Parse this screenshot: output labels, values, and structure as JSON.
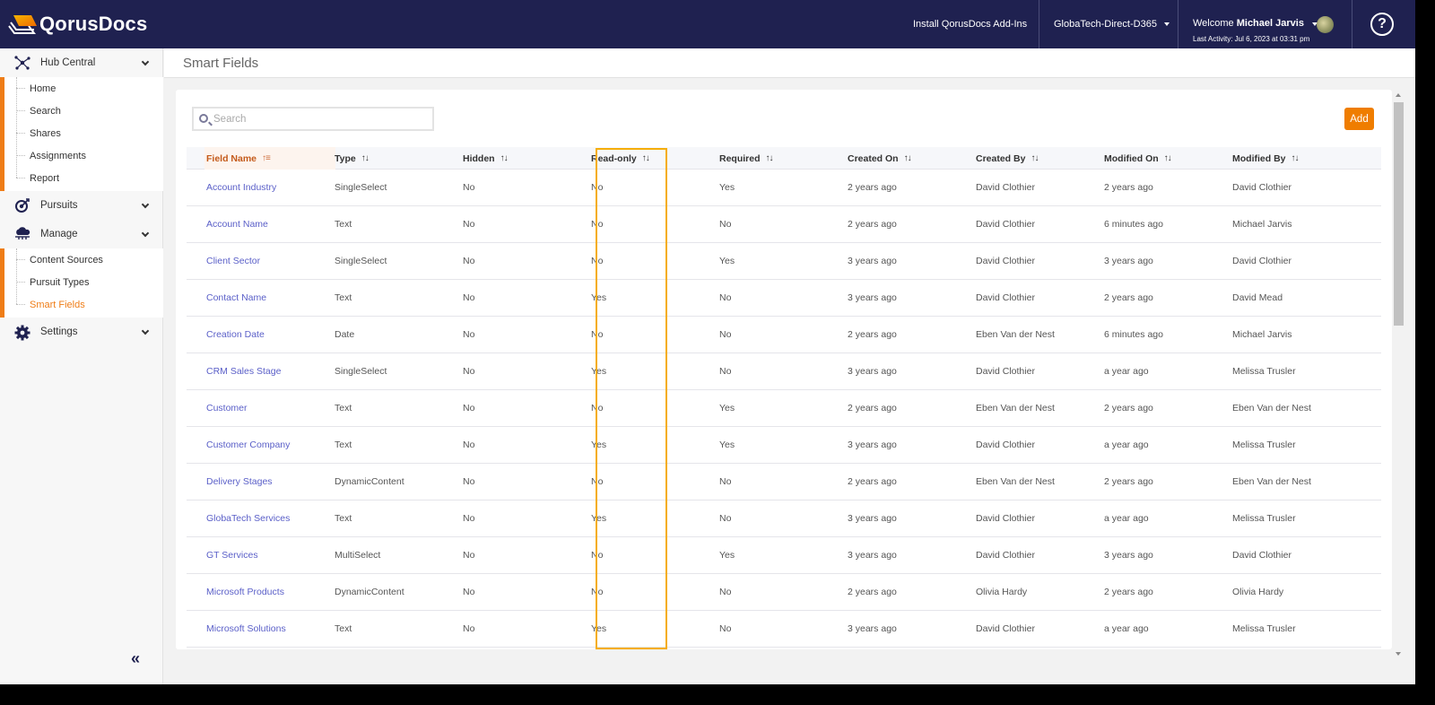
{
  "app": {
    "brand": "QorusDocs",
    "colors": {
      "navy": "#1f2150",
      "accent": "#ef7d00",
      "link": "#5a5fc8",
      "highlight": "#f5ad0a"
    }
  },
  "topbar": {
    "install_addins": "Install QorusDocs Add-Ins",
    "tenant": "GlobaTech-Direct-D365",
    "welcome_prefix": "Welcome",
    "user_name": "Michael Jarvis",
    "last_activity": "Last Activity: Jul 6, 2023 at 03:31 pm",
    "help_icon": "?"
  },
  "sidebar": {
    "groups": [
      {
        "label": "Hub Central",
        "icon": "hub-icon",
        "items": [
          "Home",
          "Search",
          "Shares",
          "Assignments",
          "Report"
        ]
      },
      {
        "label": "Pursuits",
        "icon": "target-icon",
        "items": []
      },
      {
        "label": "Manage",
        "icon": "cloud-network-icon",
        "items": [
          "Content Sources",
          "Pursuit Types",
          "Smart Fields"
        ],
        "active_item": "Smart Fields"
      },
      {
        "label": "Settings",
        "icon": "gear-icon",
        "items": []
      }
    ],
    "collapse_label": "«"
  },
  "page": {
    "title": "Smart Fields",
    "search_placeholder": "Search",
    "search_value": "",
    "add_label": "Add"
  },
  "table": {
    "columns": [
      "Field Name",
      "Type",
      "Hidden",
      "Read-only",
      "Required",
      "Created On",
      "Created By",
      "Modified On",
      "Modified By"
    ],
    "sorted_column": "Field Name",
    "highlighted_column": "Read-only",
    "rows": [
      [
        "Account Industry",
        "SingleSelect",
        "No",
        "No",
        "Yes",
        "2 years ago",
        "David Clothier",
        "2 years ago",
        "David Clothier"
      ],
      [
        "Account Name",
        "Text",
        "No",
        "No",
        "No",
        "2 years ago",
        "David Clothier",
        "6 minutes ago",
        "Michael Jarvis"
      ],
      [
        "Client Sector",
        "SingleSelect",
        "No",
        "No",
        "Yes",
        "3 years ago",
        "David Clothier",
        "3 years ago",
        "David Clothier"
      ],
      [
        "Contact Name",
        "Text",
        "No",
        "Yes",
        "No",
        "3 years ago",
        "David Clothier",
        "2 years ago",
        "David Mead"
      ],
      [
        "Creation Date",
        "Date",
        "No",
        "No",
        "No",
        "2 years ago",
        "Eben Van der Nest",
        "6 minutes ago",
        "Michael Jarvis"
      ],
      [
        "CRM Sales Stage",
        "SingleSelect",
        "No",
        "Yes",
        "No",
        "3 years ago",
        "David Clothier",
        "a year ago",
        "Melissa Trusler"
      ],
      [
        "Customer",
        "Text",
        "No",
        "No",
        "Yes",
        "2 years ago",
        "Eben Van der Nest",
        "2 years ago",
        "Eben Van der Nest"
      ],
      [
        "Customer Company",
        "Text",
        "No",
        "Yes",
        "Yes",
        "3 years ago",
        "David Clothier",
        "a year ago",
        "Melissa Trusler"
      ],
      [
        "Delivery Stages",
        "DynamicContent",
        "No",
        "No",
        "No",
        "2 years ago",
        "Eben Van der Nest",
        "2 years ago",
        "Eben Van der Nest"
      ],
      [
        "GlobaTech Services",
        "Text",
        "No",
        "Yes",
        "No",
        "3 years ago",
        "David Clothier",
        "a year ago",
        "Melissa Trusler"
      ],
      [
        "GT Services",
        "MultiSelect",
        "No",
        "No",
        "Yes",
        "3 years ago",
        "David Clothier",
        "3 years ago",
        "David Clothier"
      ],
      [
        "Microsoft Products",
        "DynamicContent",
        "No",
        "No",
        "No",
        "2 years ago",
        "Olivia Hardy",
        "2 years ago",
        "Olivia Hardy"
      ],
      [
        "Microsoft Solutions",
        "Text",
        "No",
        "Yes",
        "No",
        "3 years ago",
        "David Clothier",
        "a year ago",
        "Melissa Trusler"
      ]
    ]
  }
}
